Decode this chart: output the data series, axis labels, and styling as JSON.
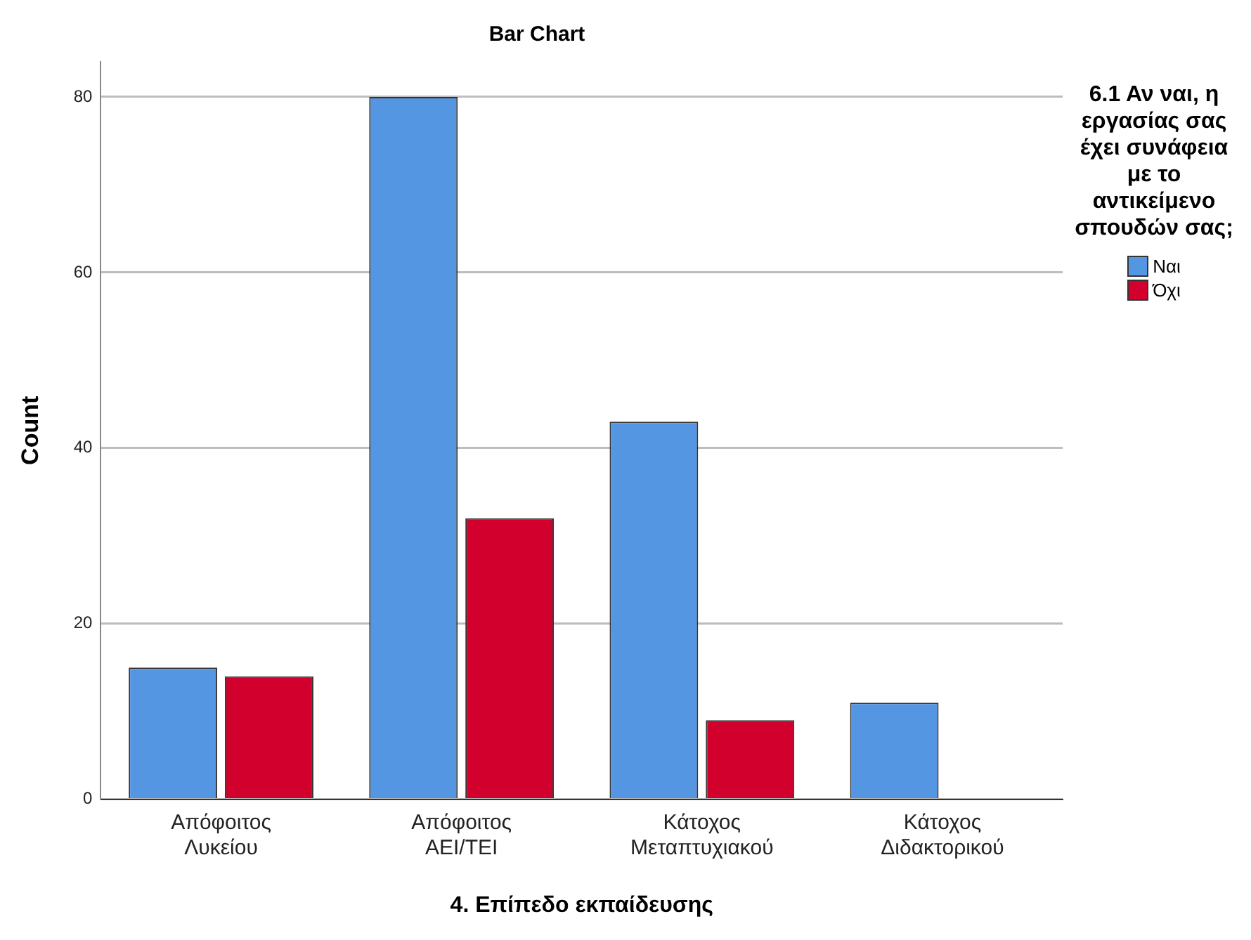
{
  "chart_data": {
    "type": "bar",
    "title": "Bar Chart",
    "xlabel": "4. Επίπεδο εκπαίδευσης",
    "ylabel": "Count",
    "legend_title": "6.1 Αν ναι, η εργασίας σας έχει συνάφεια με το αντικείμενο σπουδών σας;",
    "categories": [
      "Απόφοιτος Λυκείου",
      "Απόφοιτος ΑΕΙ/ΤΕΙ",
      "Κάτοχος Μεταπτυχιακού",
      "Κάτοχος Διδακτορικού"
    ],
    "series": [
      {
        "name": "Ναι",
        "color": "#5596e3",
        "values": [
          15,
          80,
          43,
          11
        ]
      },
      {
        "name": "Όχι",
        "color": "#d2002c",
        "values": [
          14,
          32,
          9,
          null
        ]
      }
    ],
    "ylim": [
      0,
      84
    ],
    "yticks": [
      0,
      20,
      40,
      60,
      80
    ],
    "grid": "y",
    "legend": "top right"
  }
}
